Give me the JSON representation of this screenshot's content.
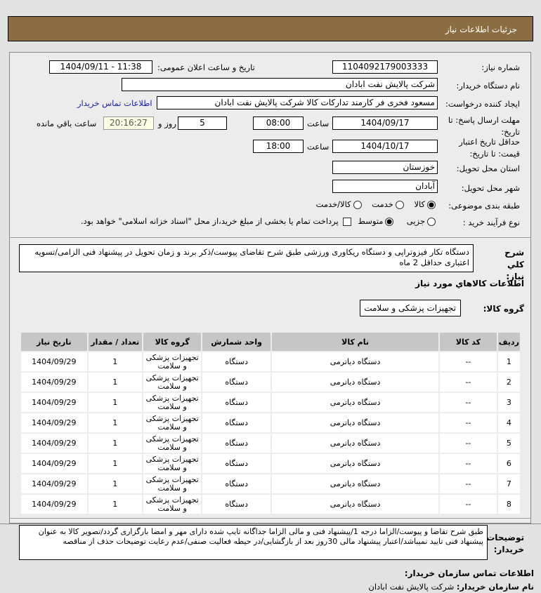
{
  "header": {
    "title": "جزئیات اطلاعات نیاز"
  },
  "form": {
    "need_number_label": "شماره نیاز:",
    "need_number": "1104092179003333",
    "announce_label": "تاریخ و ساعت اعلان عمومی:",
    "announce_value": "1404/09/11 - 11:38",
    "buyer_name_label": "نام دستگاه خریدار:",
    "buyer_name": "شرکت پالایش نفت ابادان",
    "creator_label": "ایجاد کننده درخواست:",
    "creator": "مسعود فخری فر کارمند تدارکات کالا شرکت پالایش نفت ابادان",
    "contact_link": "اطلاعات تماس خریدار",
    "deadline_label": "مهلت ارسال پاسخ: تا تاریخ:",
    "deadline_date": "1404/09/17",
    "time_label": "ساعت",
    "deadline_time": "08:00",
    "days": "5",
    "days_label": "روز و",
    "remaining": "20:16:27",
    "remaining_label": "ساعت باقي مانده",
    "validity_label": "حداقل تاریخ اعتبار قیمت: تا تاریخ:",
    "validity_date": "1404/10/17",
    "validity_time": "18:00",
    "province_label": "استان محل تحویل:",
    "province": "خوزستان",
    "city_label": "شهر محل تحویل:",
    "city": "آبادان",
    "category_label": "طبقه بندی موضوعی:",
    "category_options": [
      "کالا",
      "خدمت",
      "کالا/خدمت"
    ],
    "category_selected": "کالا",
    "process_label": "نوع فرآیند خرید :",
    "process_options": [
      "جزیی",
      "متوسط"
    ],
    "process_selected": "متوسط",
    "payment_note": "پرداخت تمام یا بخشی از مبلغ خرید،از محل \"اسناد خزانه اسلامی\" خواهد بود."
  },
  "summary": {
    "label": "شرح کلي نياز:",
    "text": "دستگاه تکار فیزوتراپی و دستگاه ریکاوری ورزشی طبق شرح تقاضای پیوست/ذکر برند و زمان تحویل در پیشنهاد فنی الزامی/تسویه اعتباری حداقل 2 ماه"
  },
  "goods": {
    "section_title": "اطلاعات کالاهاي مورد نياز",
    "group_label": "گروه کالا:",
    "group": "تجهیزات پزشکی و سلامت",
    "columns": [
      "ردیف",
      "کد کالا",
      "نام کالا",
      "واحد شمارش",
      "گروه کالا",
      "تعداد / مقدار",
      "تاریخ نیاز"
    ],
    "rows": [
      {
        "n": "1",
        "code": "--",
        "name": "دستگاه دیاترمی",
        "unit": "دستگاه",
        "group": "تجهیزات پزشکی و سلامت",
        "qty": "1",
        "date": "1404/09/29"
      },
      {
        "n": "2",
        "code": "--",
        "name": "دستگاه دیاترمی",
        "unit": "دستگاه",
        "group": "تجهیزات پزشکی و سلامت",
        "qty": "1",
        "date": "1404/09/29"
      },
      {
        "n": "3",
        "code": "--",
        "name": "دستگاه دیاترمی",
        "unit": "دستگاه",
        "group": "تجهیزات پزشکی و سلامت",
        "qty": "1",
        "date": "1404/09/29"
      },
      {
        "n": "4",
        "code": "--",
        "name": "دستگاه دیاترمی",
        "unit": "دستگاه",
        "group": "تجهیزات پزشکی و سلامت",
        "qty": "1",
        "date": "1404/09/29"
      },
      {
        "n": "5",
        "code": "--",
        "name": "دستگاه دیاترمی",
        "unit": "دستگاه",
        "group": "تجهیزات پزشکی و سلامت",
        "qty": "1",
        "date": "1404/09/29"
      },
      {
        "n": "6",
        "code": "--",
        "name": "دستگاه دیاترمی",
        "unit": "دستگاه",
        "group": "تجهیزات پزشکی و سلامت",
        "qty": "1",
        "date": "1404/09/29"
      },
      {
        "n": "7",
        "code": "--",
        "name": "دستگاه دیاترمی",
        "unit": "دستگاه",
        "group": "تجهیزات پزشکی و سلامت",
        "qty": "1",
        "date": "1404/09/29"
      },
      {
        "n": "8",
        "code": "--",
        "name": "دستگاه دیاترمی",
        "unit": "دستگاه",
        "group": "تجهیزات پزشکی و سلامت",
        "qty": "1",
        "date": "1404/09/29"
      }
    ]
  },
  "notes": {
    "label": "توضیحات خریدار:",
    "text": "طبق شرح تقاضا و پیوست/الزاما درجه 1/پیشنهاد فنی و مالی الزاما جداگانه تایپ شده دارای مهر و امضا بارگزاری گردد/تصویر کالا به عنوان پیشنهاد فنی تایید نمیباشد/اعتبار پیشنهاد مالی 30روز بعد از بازگشایی/در حیطه فعالیت صنفی/عدم رعایت توضیحات حذف از مناقصه"
  },
  "contact": {
    "title": "اطلاعات تماس سازمان خریدار:",
    "org_label": "نام سازمان خریدار:",
    "org": "شرکت پالایش نفت ابادان"
  }
}
